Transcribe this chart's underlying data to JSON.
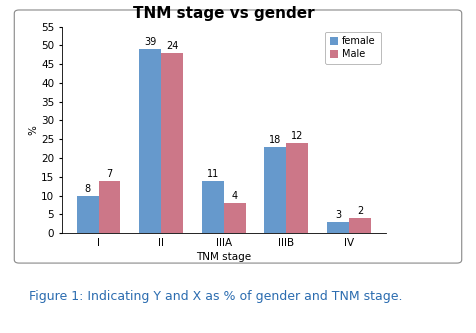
{
  "title": "TNM stage vs gender",
  "categories": [
    "I",
    "II",
    "IIIA",
    "IIIB",
    "IV"
  ],
  "female_values": [
    10,
    49,
    14,
    23,
    3
  ],
  "male_values": [
    14,
    48,
    8,
    24,
    4
  ],
  "female_labels": [
    "8",
    "39",
    "11",
    "18",
    "3"
  ],
  "male_labels": [
    "7",
    "24",
    "4",
    "12",
    "2"
  ],
  "female_color": "#6699CC",
  "male_color": "#CC7788",
  "ylabel": "%",
  "xlabel": "TNM stage",
  "ylim": [
    0,
    55
  ],
  "yticks": [
    0,
    5,
    10,
    15,
    20,
    25,
    30,
    35,
    40,
    45,
    50,
    55
  ],
  "legend_labels": [
    "female",
    "Male"
  ],
  "bar_width": 0.35,
  "label_fontsize": 7,
  "title_fontsize": 11,
  "axis_label_fontsize": 7.5,
  "tick_fontsize": 7.5,
  "caption": "Figure 1: Indicating Y and X as % of gender and TNM stage.",
  "caption_color": "#2B6CB0",
  "caption_fontsize": 9,
  "outer_bg": "#F0F0F0",
  "chart_bg": "white"
}
